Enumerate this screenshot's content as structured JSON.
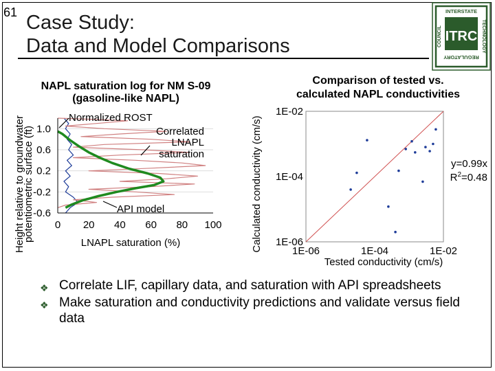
{
  "slide": {
    "number": "61",
    "title_line1": "Case Study:",
    "title_line2": "Data and Model Comparisons",
    "logo": {
      "top_text": "INTERSTATE",
      "right_text": "TECHNOLOGY",
      "left_text": "COUNCIL",
      "bottom_text": "REGULATORY",
      "center_text": "ITRC",
      "icon": "itrc-logo"
    },
    "bullets": [
      "Correlate LIF, capillary data, and saturation with API spreadsheets",
      "Make saturation and conductivity predictions and validate versus field data"
    ],
    "bullet_icon": "diamond-bullet-icon"
  },
  "chart_data": [
    {
      "type": "line",
      "title": "NAPL saturation log for NM S-09",
      "subtitle": "(gasoline-like NAPL)",
      "xlabel": "LNAPL saturation (%)",
      "ylabel_line1": "Height relative to groundwater",
      "ylabel_line2": "potentiometric surface (ft)",
      "xlim": [
        0,
        100
      ],
      "ylim": [
        -0.6,
        1.2
      ],
      "x_ticks": [
        "0",
        "20",
        "40",
        "60",
        "80",
        "100"
      ],
      "y_ticks": [
        "1.0",
        "0.6",
        "0.2",
        "-0.2",
        "-0.6"
      ],
      "annotations": [
        "Normalized ROST",
        "Correlated",
        "LNAPL",
        "saturation",
        "API model"
      ],
      "series": [
        {
          "label_ref": "Normalized ROST",
          "color": "#1f3d99",
          "points": [
            [
              4,
              1.2
            ],
            [
              7,
              1.1
            ],
            [
              5,
              1.0
            ],
            [
              8,
              0.9
            ],
            [
              6,
              0.8
            ],
            [
              9,
              0.7
            ],
            [
              7,
              0.6
            ],
            [
              10,
              0.5
            ],
            [
              6,
              0.4
            ],
            [
              9,
              0.3
            ],
            [
              5,
              0.2
            ],
            [
              8,
              0.1
            ],
            [
              4,
              0.0
            ],
            [
              7,
              -0.1
            ],
            [
              5,
              -0.2
            ],
            [
              10,
              -0.3
            ],
            [
              13,
              -0.4
            ],
            [
              8,
              -0.5
            ],
            [
              5,
              -0.6
            ]
          ]
        },
        {
          "label_ref": "Correlated LNAPL saturation",
          "color": "#d08080",
          "points": [
            [
              0,
              1.2
            ],
            [
              20,
              1.18
            ],
            [
              45,
              1.15
            ],
            [
              25,
              1.1
            ],
            [
              5,
              1.05
            ],
            [
              30,
              1.0
            ],
            [
              70,
              0.95
            ],
            [
              40,
              0.9
            ],
            [
              15,
              0.85
            ],
            [
              60,
              0.8
            ],
            [
              85,
              0.75
            ],
            [
              30,
              0.7
            ],
            [
              10,
              0.65
            ],
            [
              55,
              0.6
            ],
            [
              85,
              0.55
            ],
            [
              40,
              0.5
            ],
            [
              10,
              0.45
            ],
            [
              50,
              0.4
            ],
            [
              80,
              0.35
            ],
            [
              95,
              0.3
            ],
            [
              60,
              0.25
            ],
            [
              20,
              0.2
            ],
            [
              65,
              0.15
            ],
            [
              90,
              0.1
            ],
            [
              70,
              0.05
            ],
            [
              40,
              0.0
            ],
            [
              88,
              -0.05
            ],
            [
              60,
              -0.1
            ],
            [
              20,
              -0.15
            ],
            [
              50,
              -0.2
            ],
            [
              75,
              -0.25
            ],
            [
              35,
              -0.3
            ],
            [
              10,
              -0.35
            ],
            [
              25,
              -0.4
            ],
            [
              5,
              -0.45
            ],
            [
              0,
              -0.5
            ]
          ]
        },
        {
          "label_ref": "API model",
          "color": "#1f8a1f",
          "points": [
            [
              0,
              0.95
            ],
            [
              3,
              0.9
            ],
            [
              8,
              0.78
            ],
            [
              14,
              0.66
            ],
            [
              20,
              0.55
            ],
            [
              27,
              0.45
            ],
            [
              35,
              0.35
            ],
            [
              46,
              0.24
            ],
            [
              58,
              0.15
            ],
            [
              66,
              0.07
            ],
            [
              68,
              0.0
            ],
            [
              62,
              -0.07
            ],
            [
              50,
              -0.13
            ],
            [
              38,
              -0.2
            ],
            [
              26,
              -0.28
            ],
            [
              16,
              -0.36
            ],
            [
              9,
              -0.44
            ],
            [
              5,
              -0.5
            ]
          ]
        }
      ]
    },
    {
      "type": "scatter",
      "title": "Comparison of tested vs.",
      "subtitle": "calculated NAPL conductivities",
      "xlabel": "Tested conductivity (cm/s)",
      "ylabel": "Calculated conductivity (cm/s)",
      "scale": "log",
      "xlim": [
        1e-06,
        0.01
      ],
      "ylim": [
        1e-06,
        0.01
      ],
      "x_ticks": [
        "1E-06",
        "1E-04",
        "1E-02"
      ],
      "y_ticks": [
        "1E-02",
        "1E-04",
        "1E-06"
      ],
      "annotation_line1": "y=0.99x",
      "annotation_line2_prefix": "R",
      "annotation_line2_sup": "2",
      "annotation_line2_suffix": "=0.48",
      "point_color": "#1f3d99",
      "fit_line_color": "#d05050",
      "points": [
        [
          2e-05,
          4e-05
        ],
        [
          3e-05,
          0.00013
        ],
        [
          6e-05,
          0.0013
        ],
        [
          0.00025,
          1.2e-05
        ],
        [
          0.0004,
          2e-06
        ],
        [
          0.0005,
          0.00015
        ],
        [
          0.0008,
          0.0007
        ],
        [
          0.0012,
          0.0012
        ],
        [
          0.0015,
          0.00055
        ],
        [
          0.0025,
          7e-05
        ],
        [
          0.003,
          0.0008
        ],
        [
          0.004,
          0.0006
        ],
        [
          0.005,
          0.001
        ],
        [
          0.006,
          0.0028
        ]
      ]
    }
  ]
}
